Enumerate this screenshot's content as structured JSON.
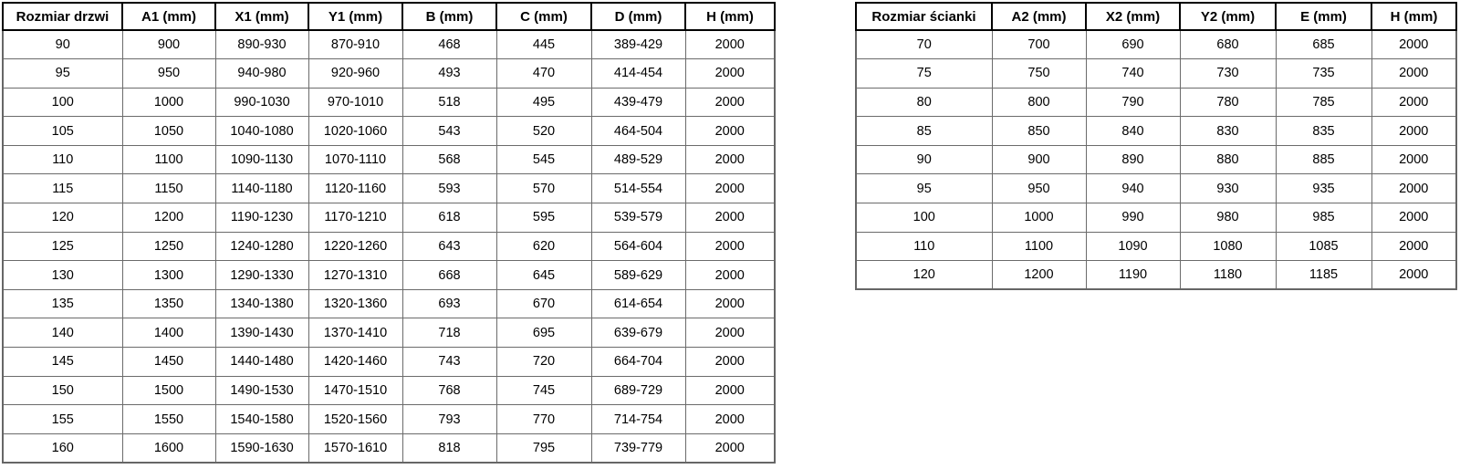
{
  "tables": [
    {
      "name": "door-size-table",
      "headers": [
        "Rozmiar drzwi",
        "A1 (mm)",
        "X1 (mm)",
        "Y1 (mm)",
        "B (mm)",
        "C (mm)",
        "D (mm)",
        "H (mm)"
      ],
      "rows": [
        [
          "90",
          "900",
          "890-930",
          "870-910",
          "468",
          "445",
          "389-429",
          "2000"
        ],
        [
          "95",
          "950",
          "940-980",
          "920-960",
          "493",
          "470",
          "414-454",
          "2000"
        ],
        [
          "100",
          "1000",
          "990-1030",
          "970-1010",
          "518",
          "495",
          "439-479",
          "2000"
        ],
        [
          "105",
          "1050",
          "1040-1080",
          "1020-1060",
          "543",
          "520",
          "464-504",
          "2000"
        ],
        [
          "110",
          "1100",
          "1090-1130",
          "1070-1110",
          "568",
          "545",
          "489-529",
          "2000"
        ],
        [
          "115",
          "1150",
          "1140-1180",
          "1120-1160",
          "593",
          "570",
          "514-554",
          "2000"
        ],
        [
          "120",
          "1200",
          "1190-1230",
          "1170-1210",
          "618",
          "595",
          "539-579",
          "2000"
        ],
        [
          "125",
          "1250",
          "1240-1280",
          "1220-1260",
          "643",
          "620",
          "564-604",
          "2000"
        ],
        [
          "130",
          "1300",
          "1290-1330",
          "1270-1310",
          "668",
          "645",
          "589-629",
          "2000"
        ],
        [
          "135",
          "1350",
          "1340-1380",
          "1320-1360",
          "693",
          "670",
          "614-654",
          "2000"
        ],
        [
          "140",
          "1400",
          "1390-1430",
          "1370-1410",
          "718",
          "695",
          "639-679",
          "2000"
        ],
        [
          "145",
          "1450",
          "1440-1480",
          "1420-1460",
          "743",
          "720",
          "664-704",
          "2000"
        ],
        [
          "150",
          "1500",
          "1490-1530",
          "1470-1510",
          "768",
          "745",
          "689-729",
          "2000"
        ],
        [
          "155",
          "1550",
          "1540-1580",
          "1520-1560",
          "793",
          "770",
          "714-754",
          "2000"
        ],
        [
          "160",
          "1600",
          "1590-1630",
          "1570-1610",
          "818",
          "795",
          "739-779",
          "2000"
        ]
      ]
    },
    {
      "name": "wall-panel-size-table",
      "headers": [
        "Rozmiar ścianki",
        "A2 (mm)",
        "X2 (mm)",
        "Y2 (mm)",
        "E (mm)",
        "H (mm)"
      ],
      "rows": [
        [
          "70",
          "700",
          "690",
          "680",
          "685",
          "2000"
        ],
        [
          "75",
          "750",
          "740",
          "730",
          "735",
          "2000"
        ],
        [
          "80",
          "800",
          "790",
          "780",
          "785",
          "2000"
        ],
        [
          "85",
          "850",
          "840",
          "830",
          "835",
          "2000"
        ],
        [
          "90",
          "900",
          "890",
          "880",
          "885",
          "2000"
        ],
        [
          "95",
          "950",
          "940",
          "930",
          "935",
          "2000"
        ],
        [
          "100",
          "1000",
          "990",
          "980",
          "985",
          "2000"
        ],
        [
          "110",
          "1100",
          "1090",
          "1080",
          "1085",
          "2000"
        ],
        [
          "120",
          "1200",
          "1190",
          "1180",
          "1185",
          "2000"
        ]
      ]
    }
  ],
  "colors": {
    "header_border": "#000000",
    "body_border": "#6b6b6b",
    "text": "#000000",
    "background": "#ffffff"
  }
}
